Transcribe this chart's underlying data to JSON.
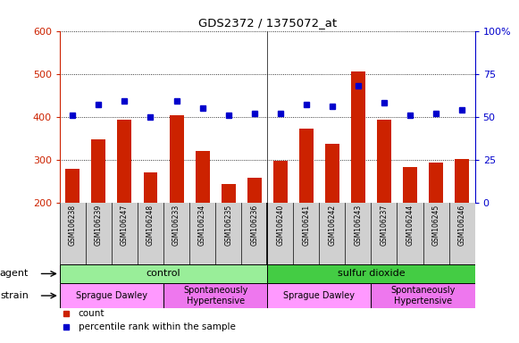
{
  "title": "GDS2372 / 1375072_at",
  "samples": [
    "GSM106238",
    "GSM106239",
    "GSM106247",
    "GSM106248",
    "GSM106233",
    "GSM106234",
    "GSM106235",
    "GSM106236",
    "GSM106240",
    "GSM106241",
    "GSM106242",
    "GSM106243",
    "GSM106237",
    "GSM106244",
    "GSM106245",
    "GSM106246"
  ],
  "counts": [
    278,
    348,
    393,
    270,
    403,
    320,
    242,
    258,
    298,
    372,
    337,
    505,
    393,
    283,
    293,
    302
  ],
  "percentiles": [
    51,
    57,
    59,
    50,
    59,
    55,
    51,
    52,
    52,
    57,
    56,
    68,
    58,
    51,
    52,
    54
  ],
  "ylim_left": [
    200,
    600
  ],
  "ylim_right": [
    0,
    100
  ],
  "yticks_left": [
    200,
    300,
    400,
    500,
    600
  ],
  "yticks_right": [
    0,
    25,
    50,
    75,
    100
  ],
  "bar_color": "#cc2200",
  "dot_color": "#0000cc",
  "bar_bottom": 200,
  "agent_groups": [
    {
      "label": "control",
      "start": 0,
      "end": 8,
      "color": "#99ee99"
    },
    {
      "label": "sulfur dioxide",
      "start": 8,
      "end": 16,
      "color": "#44cc44"
    }
  ],
  "strain_groups": [
    {
      "label": "Sprague Dawley",
      "start": 0,
      "end": 4,
      "color": "#ff99ff"
    },
    {
      "label": "Spontaneously\nHypertensive",
      "start": 4,
      "end": 8,
      "color": "#ee77ee"
    },
    {
      "label": "Sprague Dawley",
      "start": 8,
      "end": 12,
      "color": "#ff99ff"
    },
    {
      "label": "Spontaneously\nHypertensive",
      "start": 12,
      "end": 16,
      "color": "#ee77ee"
    }
  ],
  "agent_label": "agent",
  "strain_label": "strain",
  "legend_count_label": "count",
  "legend_pct_label": "percentile rank within the sample",
  "left_axis_color": "#cc2200",
  "right_axis_color": "#0000cc",
  "xtick_bg": "#d0d0d0"
}
